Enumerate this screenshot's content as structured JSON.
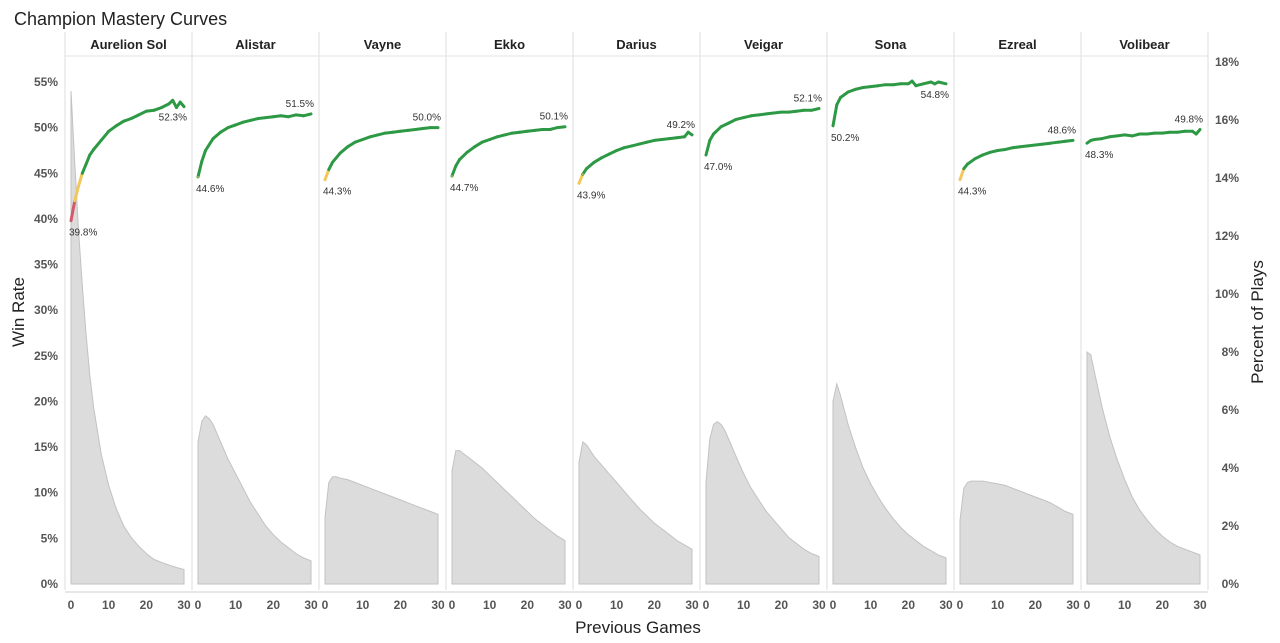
{
  "chart_data": {
    "type": "line",
    "title": "Champion Mastery Curves",
    "xlabel": "Previous Games",
    "ylabel_left": "Win Rate",
    "ylabel_right": "Percent of Plays",
    "x_ticks": [
      "0",
      "10",
      "20",
      "30"
    ],
    "xlim": [
      0,
      30
    ],
    "ylim_left": [
      0,
      56
    ],
    "ylim_right": [
      0,
      18
    ],
    "y_left_ticks": [
      {
        "value": 0,
        "label": "0%"
      },
      {
        "value": 5,
        "label": "5%"
      },
      {
        "value": 10,
        "label": "10%"
      },
      {
        "value": 15,
        "label": "15%"
      },
      {
        "value": 20,
        "label": "20%"
      },
      {
        "value": 25,
        "label": "25%"
      },
      {
        "value": 30,
        "label": "30%"
      },
      {
        "value": 35,
        "label": "35%"
      },
      {
        "value": 40,
        "label": "40%"
      },
      {
        "value": 45,
        "label": "45%"
      },
      {
        "value": 50,
        "label": "50%"
      },
      {
        "value": 55,
        "label": "55%"
      }
    ],
    "y_right_ticks": [
      {
        "value": 0,
        "label": "0%"
      },
      {
        "value": 2,
        "label": "2%"
      },
      {
        "value": 4,
        "label": "4%"
      },
      {
        "value": 6,
        "label": "6%"
      },
      {
        "value": 8,
        "label": "8%"
      },
      {
        "value": 10,
        "label": "10%"
      },
      {
        "value": 12,
        "label": "12%"
      },
      {
        "value": 14,
        "label": "14%"
      },
      {
        "value": 16,
        "label": "16%"
      },
      {
        "value": 18,
        "label": "18%"
      }
    ],
    "grid": false,
    "colors": {
      "winrate_high": "#2e9944",
      "winrate_mid": "#f2c75c",
      "winrate_low": "#d45a6a",
      "plays_fill": "#dcdcdc",
      "plays_line": "#c2c2c2",
      "divider": "#dddddd"
    },
    "panels": [
      {
        "champion": "Aurelion Sol",
        "start_label": "39.8%",
        "end_label": "52.3%",
        "win_rate": {
          "x": [
            0,
            1,
            2,
            3,
            4,
            5,
            6,
            8,
            10,
            12,
            14,
            16,
            18,
            20,
            22,
            24,
            26,
            27,
            28,
            29,
            30
          ],
          "y": [
            39.8,
            42.0,
            43.6,
            45.0,
            46.0,
            47.0,
            47.6,
            48.6,
            49.6,
            50.2,
            50.7,
            51.0,
            51.4,
            51.8,
            51.9,
            52.2,
            52.6,
            53.0,
            52.2,
            52.8,
            52.3
          ]
        },
        "plays": {
          "x": [
            0,
            1,
            2,
            3,
            4,
            5,
            6,
            8,
            10,
            12,
            14,
            16,
            18,
            20,
            22,
            24,
            26,
            28,
            30
          ],
          "y": [
            17.0,
            14.5,
            12.2,
            10.3,
            8.6,
            7.2,
            6.1,
            4.5,
            3.4,
            2.6,
            2.0,
            1.6,
            1.3,
            1.05,
            0.85,
            0.75,
            0.65,
            0.57,
            0.5
          ]
        }
      },
      {
        "champion": "Alistar",
        "start_label": "44.6%",
        "end_label": "51.5%",
        "win_rate": {
          "x": [
            0,
            1,
            2,
            4,
            6,
            8,
            10,
            12,
            14,
            16,
            18,
            20,
            22,
            24,
            26,
            28,
            30
          ],
          "y": [
            44.6,
            46.3,
            47.5,
            48.8,
            49.5,
            50.0,
            50.3,
            50.6,
            50.8,
            51.0,
            51.1,
            51.2,
            51.3,
            51.2,
            51.4,
            51.3,
            51.5
          ]
        },
        "plays": {
          "x": [
            0,
            1,
            2,
            3,
            4,
            6,
            8,
            10,
            12,
            14,
            16,
            18,
            20,
            22,
            24,
            26,
            28,
            30
          ],
          "y": [
            4.9,
            5.6,
            5.8,
            5.7,
            5.5,
            4.9,
            4.3,
            3.8,
            3.3,
            2.8,
            2.4,
            2.0,
            1.7,
            1.45,
            1.25,
            1.05,
            0.9,
            0.8
          ]
        }
      },
      {
        "champion": "Vayne",
        "start_label": "44.3%",
        "end_label": "50.0%",
        "win_rate": {
          "x": [
            0,
            1,
            2,
            4,
            6,
            8,
            10,
            12,
            14,
            16,
            18,
            20,
            22,
            24,
            26,
            28,
            30
          ],
          "y": [
            44.3,
            45.4,
            46.2,
            47.2,
            47.9,
            48.4,
            48.7,
            49.0,
            49.2,
            49.4,
            49.5,
            49.6,
            49.7,
            49.8,
            49.9,
            50.0,
            50.0
          ]
        },
        "plays": {
          "x": [
            0,
            1,
            2,
            3,
            4,
            6,
            8,
            10,
            12,
            14,
            16,
            18,
            20,
            22,
            24,
            26,
            28,
            30
          ],
          "y": [
            2.3,
            3.5,
            3.7,
            3.7,
            3.65,
            3.6,
            3.5,
            3.4,
            3.3,
            3.2,
            3.1,
            3.0,
            2.9,
            2.8,
            2.7,
            2.6,
            2.5,
            2.4
          ]
        }
      },
      {
        "champion": "Ekko",
        "start_label": "44.7%",
        "end_label": "50.1%",
        "win_rate": {
          "x": [
            0,
            1,
            2,
            4,
            6,
            8,
            10,
            12,
            14,
            16,
            18,
            20,
            22,
            24,
            26,
            28,
            30
          ],
          "y": [
            44.7,
            45.8,
            46.5,
            47.3,
            47.9,
            48.4,
            48.7,
            49.0,
            49.2,
            49.4,
            49.5,
            49.6,
            49.7,
            49.8,
            49.8,
            50.0,
            50.1
          ]
        },
        "plays": {
          "x": [
            0,
            1,
            2,
            3,
            4,
            6,
            8,
            10,
            12,
            14,
            16,
            18,
            20,
            22,
            24,
            26,
            28,
            30
          ],
          "y": [
            3.9,
            4.6,
            4.6,
            4.5,
            4.4,
            4.2,
            4.0,
            3.75,
            3.5,
            3.25,
            3.0,
            2.75,
            2.5,
            2.25,
            2.05,
            1.85,
            1.65,
            1.5
          ]
        }
      },
      {
        "champion": "Darius",
        "start_label": "43.9%",
        "end_label": "49.2%",
        "win_rate": {
          "x": [
            0,
            1,
            2,
            4,
            6,
            8,
            10,
            12,
            14,
            16,
            18,
            20,
            22,
            24,
            26,
            28,
            29,
            30
          ],
          "y": [
            43.9,
            44.9,
            45.5,
            46.2,
            46.7,
            47.1,
            47.5,
            47.8,
            48.0,
            48.2,
            48.4,
            48.6,
            48.7,
            48.8,
            48.9,
            49.0,
            49.5,
            49.2
          ]
        },
        "plays": {
          "x": [
            0,
            1,
            2,
            3,
            4,
            6,
            8,
            10,
            12,
            14,
            16,
            18,
            20,
            22,
            24,
            26,
            28,
            30
          ],
          "y": [
            4.2,
            4.9,
            4.8,
            4.6,
            4.4,
            4.1,
            3.8,
            3.5,
            3.2,
            2.9,
            2.6,
            2.35,
            2.1,
            1.9,
            1.7,
            1.5,
            1.35,
            1.2
          ]
        }
      },
      {
        "champion": "Veigar",
        "start_label": "47.0%",
        "end_label": "52.1%",
        "win_rate": {
          "x": [
            0,
            1,
            2,
            4,
            6,
            8,
            10,
            12,
            14,
            16,
            18,
            20,
            22,
            24,
            26,
            28,
            30
          ],
          "y": [
            47.0,
            48.6,
            49.3,
            50.1,
            50.5,
            50.9,
            51.1,
            51.3,
            51.4,
            51.5,
            51.6,
            51.7,
            51.7,
            51.8,
            51.9,
            51.9,
            52.1
          ]
        },
        "plays": {
          "x": [
            0,
            1,
            2,
            3,
            4,
            5,
            6,
            8,
            10,
            12,
            14,
            16,
            18,
            20,
            22,
            24,
            26,
            28,
            30
          ],
          "y": [
            3.5,
            5.0,
            5.5,
            5.6,
            5.5,
            5.3,
            5.0,
            4.4,
            3.8,
            3.3,
            2.9,
            2.5,
            2.2,
            1.9,
            1.6,
            1.4,
            1.2,
            1.05,
            0.95
          ]
        }
      },
      {
        "champion": "Sona",
        "start_label": "50.2%",
        "end_label": "54.8%",
        "win_rate": {
          "x": [
            0,
            1,
            2,
            4,
            6,
            8,
            10,
            12,
            14,
            16,
            18,
            20,
            21,
            22,
            24,
            26,
            27,
            28,
            30
          ],
          "y": [
            50.2,
            52.5,
            53.3,
            53.9,
            54.2,
            54.4,
            54.5,
            54.6,
            54.7,
            54.7,
            54.8,
            54.8,
            55.1,
            54.6,
            54.8,
            55.0,
            54.8,
            55.0,
            54.8
          ]
        },
        "plays": {
          "x": [
            0,
            1,
            2,
            3,
            4,
            6,
            8,
            10,
            12,
            14,
            16,
            18,
            20,
            22,
            24,
            26,
            28,
            30
          ],
          "y": [
            6.3,
            6.9,
            6.5,
            6.0,
            5.5,
            4.7,
            4.0,
            3.45,
            3.0,
            2.6,
            2.25,
            1.95,
            1.7,
            1.5,
            1.3,
            1.15,
            1.0,
            0.9
          ]
        }
      },
      {
        "champion": "Ezreal",
        "start_label": "44.3%",
        "end_label": "48.6%",
        "win_rate": {
          "x": [
            0,
            1,
            2,
            4,
            6,
            8,
            10,
            12,
            14,
            16,
            18,
            20,
            22,
            24,
            26,
            28,
            30
          ],
          "y": [
            44.3,
            45.5,
            46.0,
            46.6,
            47.0,
            47.3,
            47.5,
            47.6,
            47.8,
            47.9,
            48.0,
            48.1,
            48.2,
            48.3,
            48.4,
            48.5,
            48.6
          ]
        },
        "plays": {
          "x": [
            0,
            1,
            2,
            3,
            4,
            6,
            8,
            10,
            12,
            14,
            16,
            18,
            20,
            22,
            24,
            26,
            28,
            30
          ],
          "y": [
            2.2,
            3.3,
            3.5,
            3.55,
            3.55,
            3.55,
            3.5,
            3.45,
            3.4,
            3.3,
            3.2,
            3.1,
            3.0,
            2.9,
            2.8,
            2.65,
            2.5,
            2.4
          ]
        }
      },
      {
        "champion": "Volibear",
        "start_label": "48.3%",
        "end_label": "49.8%",
        "win_rate": {
          "x": [
            0,
            1,
            2,
            4,
            6,
            8,
            10,
            12,
            14,
            16,
            18,
            20,
            22,
            24,
            26,
            28,
            29,
            30
          ],
          "y": [
            48.3,
            48.6,
            48.7,
            48.8,
            49.0,
            49.1,
            49.2,
            49.1,
            49.3,
            49.3,
            49.4,
            49.4,
            49.5,
            49.5,
            49.6,
            49.6,
            49.3,
            49.8
          ]
        },
        "plays": {
          "x": [
            0,
            1,
            2,
            3,
            4,
            6,
            8,
            10,
            12,
            14,
            16,
            18,
            20,
            22,
            24,
            26,
            28,
            30
          ],
          "y": [
            8.0,
            7.9,
            7.3,
            6.7,
            6.1,
            5.1,
            4.3,
            3.6,
            3.0,
            2.55,
            2.2,
            1.9,
            1.65,
            1.45,
            1.3,
            1.2,
            1.1,
            1.0
          ]
        }
      }
    ]
  }
}
